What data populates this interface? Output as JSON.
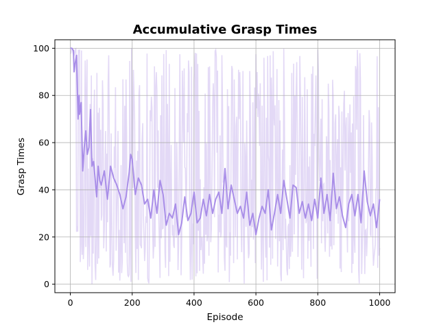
{
  "chart_data": {
    "type": "line",
    "title": "Accumulative Grasp Times",
    "xlabel": "Episode",
    "ylabel": "Grasp Times",
    "xlim": [
      -50,
      1050
    ],
    "ylim": [
      -3.6,
      103.6
    ],
    "xticks": [
      0,
      200,
      400,
      600,
      800,
      1000
    ],
    "yticks": [
      0,
      20,
      40,
      60,
      80,
      100
    ],
    "grid": true,
    "legend": "none",
    "colors": {
      "smoothed": "#a98ee8",
      "raw": "#e3d9f6"
    },
    "series": [
      {
        "role": "raw",
        "x_start": 0,
        "x_end": 1000,
        "min": 0,
        "max": 100
      },
      {
        "role": "smoothed",
        "x": [
          0,
          5,
          10,
          12,
          15,
          20,
          25,
          28,
          30,
          35,
          40,
          45,
          50,
          55,
          60,
          65,
          70,
          75,
          80,
          85,
          90,
          95,
          100,
          110,
          120,
          130,
          140,
          150,
          160,
          170,
          180,
          190,
          195,
          200,
          210,
          220,
          230,
          240,
          250,
          260,
          270,
          280,
          290,
          300,
          310,
          320,
          330,
          340,
          350,
          360,
          370,
          380,
          390,
          400,
          410,
          420,
          430,
          440,
          450,
          460,
          470,
          480,
          490,
          500,
          510,
          520,
          530,
          540,
          550,
          560,
          570,
          580,
          590,
          600,
          610,
          620,
          630,
          640,
          650,
          660,
          670,
          680,
          690,
          700,
          710,
          720,
          730,
          740,
          750,
          760,
          770,
          780,
          790,
          800,
          810,
          820,
          830,
          840,
          850,
          860,
          870,
          880,
          890,
          900,
          910,
          920,
          930,
          940,
          950,
          960,
          970,
          980,
          990,
          1000
        ],
        "y": [
          100,
          100,
          99,
          90,
          93,
          97,
          70,
          80,
          72,
          77,
          48,
          58,
          65,
          55,
          58,
          74,
          50,
          52,
          45,
          37,
          50,
          44,
          42,
          48,
          36,
          50,
          45,
          42,
          38,
          32,
          37,
          47,
          55,
          53,
          38,
          45,
          42,
          34,
          36,
          28,
          40,
          30,
          44,
          38,
          25,
          30,
          28,
          34,
          21,
          26,
          37,
          27,
          30,
          39,
          26,
          28,
          36,
          29,
          38,
          30,
          36,
          39,
          30,
          49,
          32,
          42,
          36,
          30,
          33,
          28,
          39,
          25,
          30,
          21,
          28,
          33,
          30,
          40,
          23,
          30,
          38,
          30,
          44,
          36,
          28,
          42,
          41,
          30,
          35,
          28,
          34,
          27,
          36,
          28,
          45,
          30,
          38,
          27,
          47,
          32,
          37,
          29,
          24,
          34,
          38,
          29,
          38,
          26,
          48,
          35,
          29,
          34,
          24,
          36
        ]
      }
    ]
  }
}
